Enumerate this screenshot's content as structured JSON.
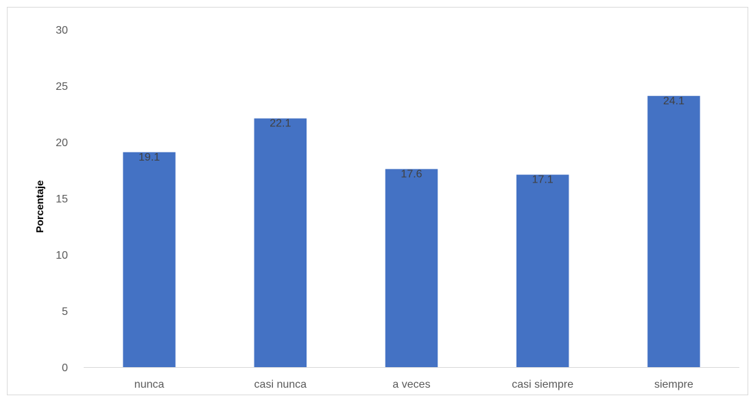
{
  "chart_data": {
    "type": "bar",
    "categories": [
      "nunca",
      "casi nunca",
      "a veces",
      "casi siempre",
      "siempre"
    ],
    "values": [
      19.1,
      22.1,
      17.6,
      17.1,
      24.1
    ],
    "data_labels": [
      "19.1",
      "22.1",
      "17.6",
      "17.1",
      "24.1"
    ],
    "title": "",
    "xlabel": "",
    "ylabel": "Porcentaje",
    "ylim": [
      0,
      30
    ],
    "yticks": [
      0,
      5,
      10,
      15,
      20,
      25,
      30
    ],
    "grid": false,
    "legend": "none",
    "bar_color": "#4472c4",
    "axis_color": "#d9d9d9"
  }
}
